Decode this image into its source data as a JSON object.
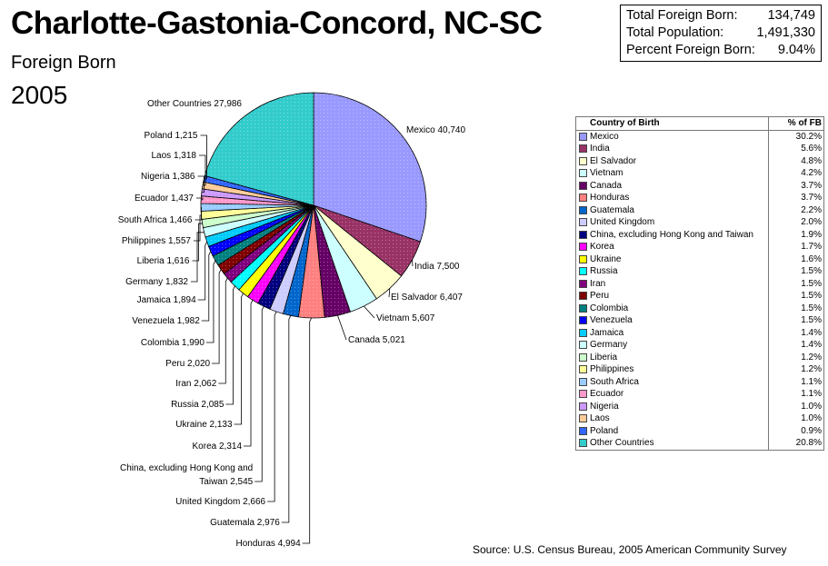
{
  "title": "Charlotte-Gastonia-Concord, NC-SC",
  "subtitle": "Foreign Born",
  "year": "2005",
  "stats": [
    {
      "label": "Total Foreign Born:",
      "value": "134,749"
    },
    {
      "label": "Total Population:",
      "value": "1,491,330"
    },
    {
      "label": "Percent Foreign Born:",
      "value": "9.04%"
    }
  ],
  "legend": {
    "header_country": "Country of Birth",
    "header_pct": "% of FB",
    "rows": [
      {
        "name": "Mexico",
        "pct": "30.2%",
        "color": "#9999ff"
      },
      {
        "name": "India",
        "pct": "5.6%",
        "color": "#993366"
      },
      {
        "name": "El Salvador",
        "pct": "4.8%",
        "color": "#ffffcc"
      },
      {
        "name": "Vietnam",
        "pct": "4.2%",
        "color": "#ccffff"
      },
      {
        "name": "Canada",
        "pct": "3.7%",
        "color": "#660066"
      },
      {
        "name": "Honduras",
        "pct": "3.7%",
        "color": "#ff8080"
      },
      {
        "name": "Guatemala",
        "pct": "2.2%",
        "color": "#0066cc"
      },
      {
        "name": "United Kingdom",
        "pct": "2.0%",
        "color": "#ccccff"
      },
      {
        "name": "China, excluding Hong Kong and Taiwan",
        "pct": "1.9%",
        "color": "#000080"
      },
      {
        "name": "Korea",
        "pct": "1.7%",
        "color": "#ff00ff"
      },
      {
        "name": "Ukraine",
        "pct": "1.6%",
        "color": "#ffff00"
      },
      {
        "name": "Russia",
        "pct": "1.5%",
        "color": "#00ffff"
      },
      {
        "name": "Iran",
        "pct": "1.5%",
        "color": "#800080"
      },
      {
        "name": "Peru",
        "pct": "1.5%",
        "color": "#800000"
      },
      {
        "name": "Colombia",
        "pct": "1.5%",
        "color": "#008080"
      },
      {
        "name": "Venezuela",
        "pct": "1.5%",
        "color": "#0000ff"
      },
      {
        "name": "Jamaica",
        "pct": "1.4%",
        "color": "#00ccff"
      },
      {
        "name": "Germany",
        "pct": "1.4%",
        "color": "#ccffff"
      },
      {
        "name": "Liberia",
        "pct": "1.2%",
        "color": "#ccffcc"
      },
      {
        "name": "Philippines",
        "pct": "1.2%",
        "color": "#ffff99"
      },
      {
        "name": "South Africa",
        "pct": "1.1%",
        "color": "#99ccff"
      },
      {
        "name": "Ecuador",
        "pct": "1.1%",
        "color": "#ff99cc"
      },
      {
        "name": "Nigeria",
        "pct": "1.0%",
        "color": "#cc99ff"
      },
      {
        "name": "Laos",
        "pct": "1.0%",
        "color": "#ffcc99"
      },
      {
        "name": "Poland",
        "pct": "0.9%",
        "color": "#3366ff"
      },
      {
        "name": "Other Countries",
        "pct": "20.8%",
        "color": "#33cccc"
      }
    ]
  },
  "chart_data": {
    "type": "pie",
    "title": "Charlotte-Gastonia-Concord, NC-SC",
    "subtitle": "Foreign Born 2005",
    "slices": [
      {
        "name": "Mexico",
        "value": 40740,
        "label": "Mexico 40,740",
        "color": "#9999ff"
      },
      {
        "name": "India",
        "value": 7500,
        "label": "India 7,500",
        "color": "#993366"
      },
      {
        "name": "El Salvador",
        "value": 6407,
        "label": "El Salvador 6,407",
        "color": "#ffffcc"
      },
      {
        "name": "Vietnam",
        "value": 5607,
        "label": "Vietnam 5,607",
        "color": "#ccffff"
      },
      {
        "name": "Canada",
        "value": 5021,
        "label": "Canada 5,021",
        "color": "#660066"
      },
      {
        "name": "Honduras",
        "value": 4994,
        "label": "Honduras 4,994",
        "color": "#ff8080"
      },
      {
        "name": "Guatemala",
        "value": 2976,
        "label": "Guatemala 2,976",
        "color": "#0066cc"
      },
      {
        "name": "United Kingdom",
        "value": 2666,
        "label": "United Kingdom 2,666",
        "color": "#ccccff"
      },
      {
        "name": "China, excluding Hong Kong and Taiwan",
        "value": 2545,
        "label": "China, excluding Hong Kong and Taiwan 2,545",
        "label_lines": [
          "China, excluding Hong Kong and",
          "Taiwan 2,545"
        ],
        "color": "#000080"
      },
      {
        "name": "Korea",
        "value": 2314,
        "label": "Korea 2,314",
        "color": "#ff00ff"
      },
      {
        "name": "Ukraine",
        "value": 2133,
        "label": "Ukraine 2,133",
        "color": "#ffff00"
      },
      {
        "name": "Russia",
        "value": 2085,
        "label": "Russia 2,085",
        "color": "#00ffff"
      },
      {
        "name": "Iran",
        "value": 2062,
        "label": "Iran 2,062",
        "color": "#800080"
      },
      {
        "name": "Peru",
        "value": 2020,
        "label": "Peru 2,020",
        "color": "#800000"
      },
      {
        "name": "Colombia",
        "value": 1990,
        "label": "Colombia 1,990",
        "color": "#008080"
      },
      {
        "name": "Venezuela",
        "value": 1982,
        "label": "Venezuela 1,982",
        "color": "#0000ff"
      },
      {
        "name": "Jamaica",
        "value": 1894,
        "label": "Jamaica 1,894",
        "color": "#00ccff"
      },
      {
        "name": "Germany",
        "value": 1832,
        "label": "Germany 1,832",
        "color": "#ccffff"
      },
      {
        "name": "Liberia",
        "value": 1616,
        "label": "Liberia 1,616",
        "color": "#ccffcc"
      },
      {
        "name": "Philippines",
        "value": 1557,
        "label": "Philippines 1,557",
        "color": "#ffff99"
      },
      {
        "name": "South Africa",
        "value": 1466,
        "label": "South Africa 1,466",
        "color": "#99ccff"
      },
      {
        "name": "Ecuador",
        "value": 1437,
        "label": "Ecuador 1,437",
        "color": "#ff99cc"
      },
      {
        "name": "Nigeria",
        "value": 1386,
        "label": "Nigeria 1,386",
        "color": "#cc99ff"
      },
      {
        "name": "Laos",
        "value": 1318,
        "label": "Laos 1,318",
        "color": "#ffcc99"
      },
      {
        "name": "Poland",
        "value": 1215,
        "label": "Poland 1,215",
        "color": "#3366ff"
      },
      {
        "name": "Other Countries",
        "value": 27986,
        "label": "Other Countries 27,986",
        "color": "#33cccc"
      }
    ]
  },
  "source": "Source: U.S. Census Bureau, 2005 American Community Survey"
}
